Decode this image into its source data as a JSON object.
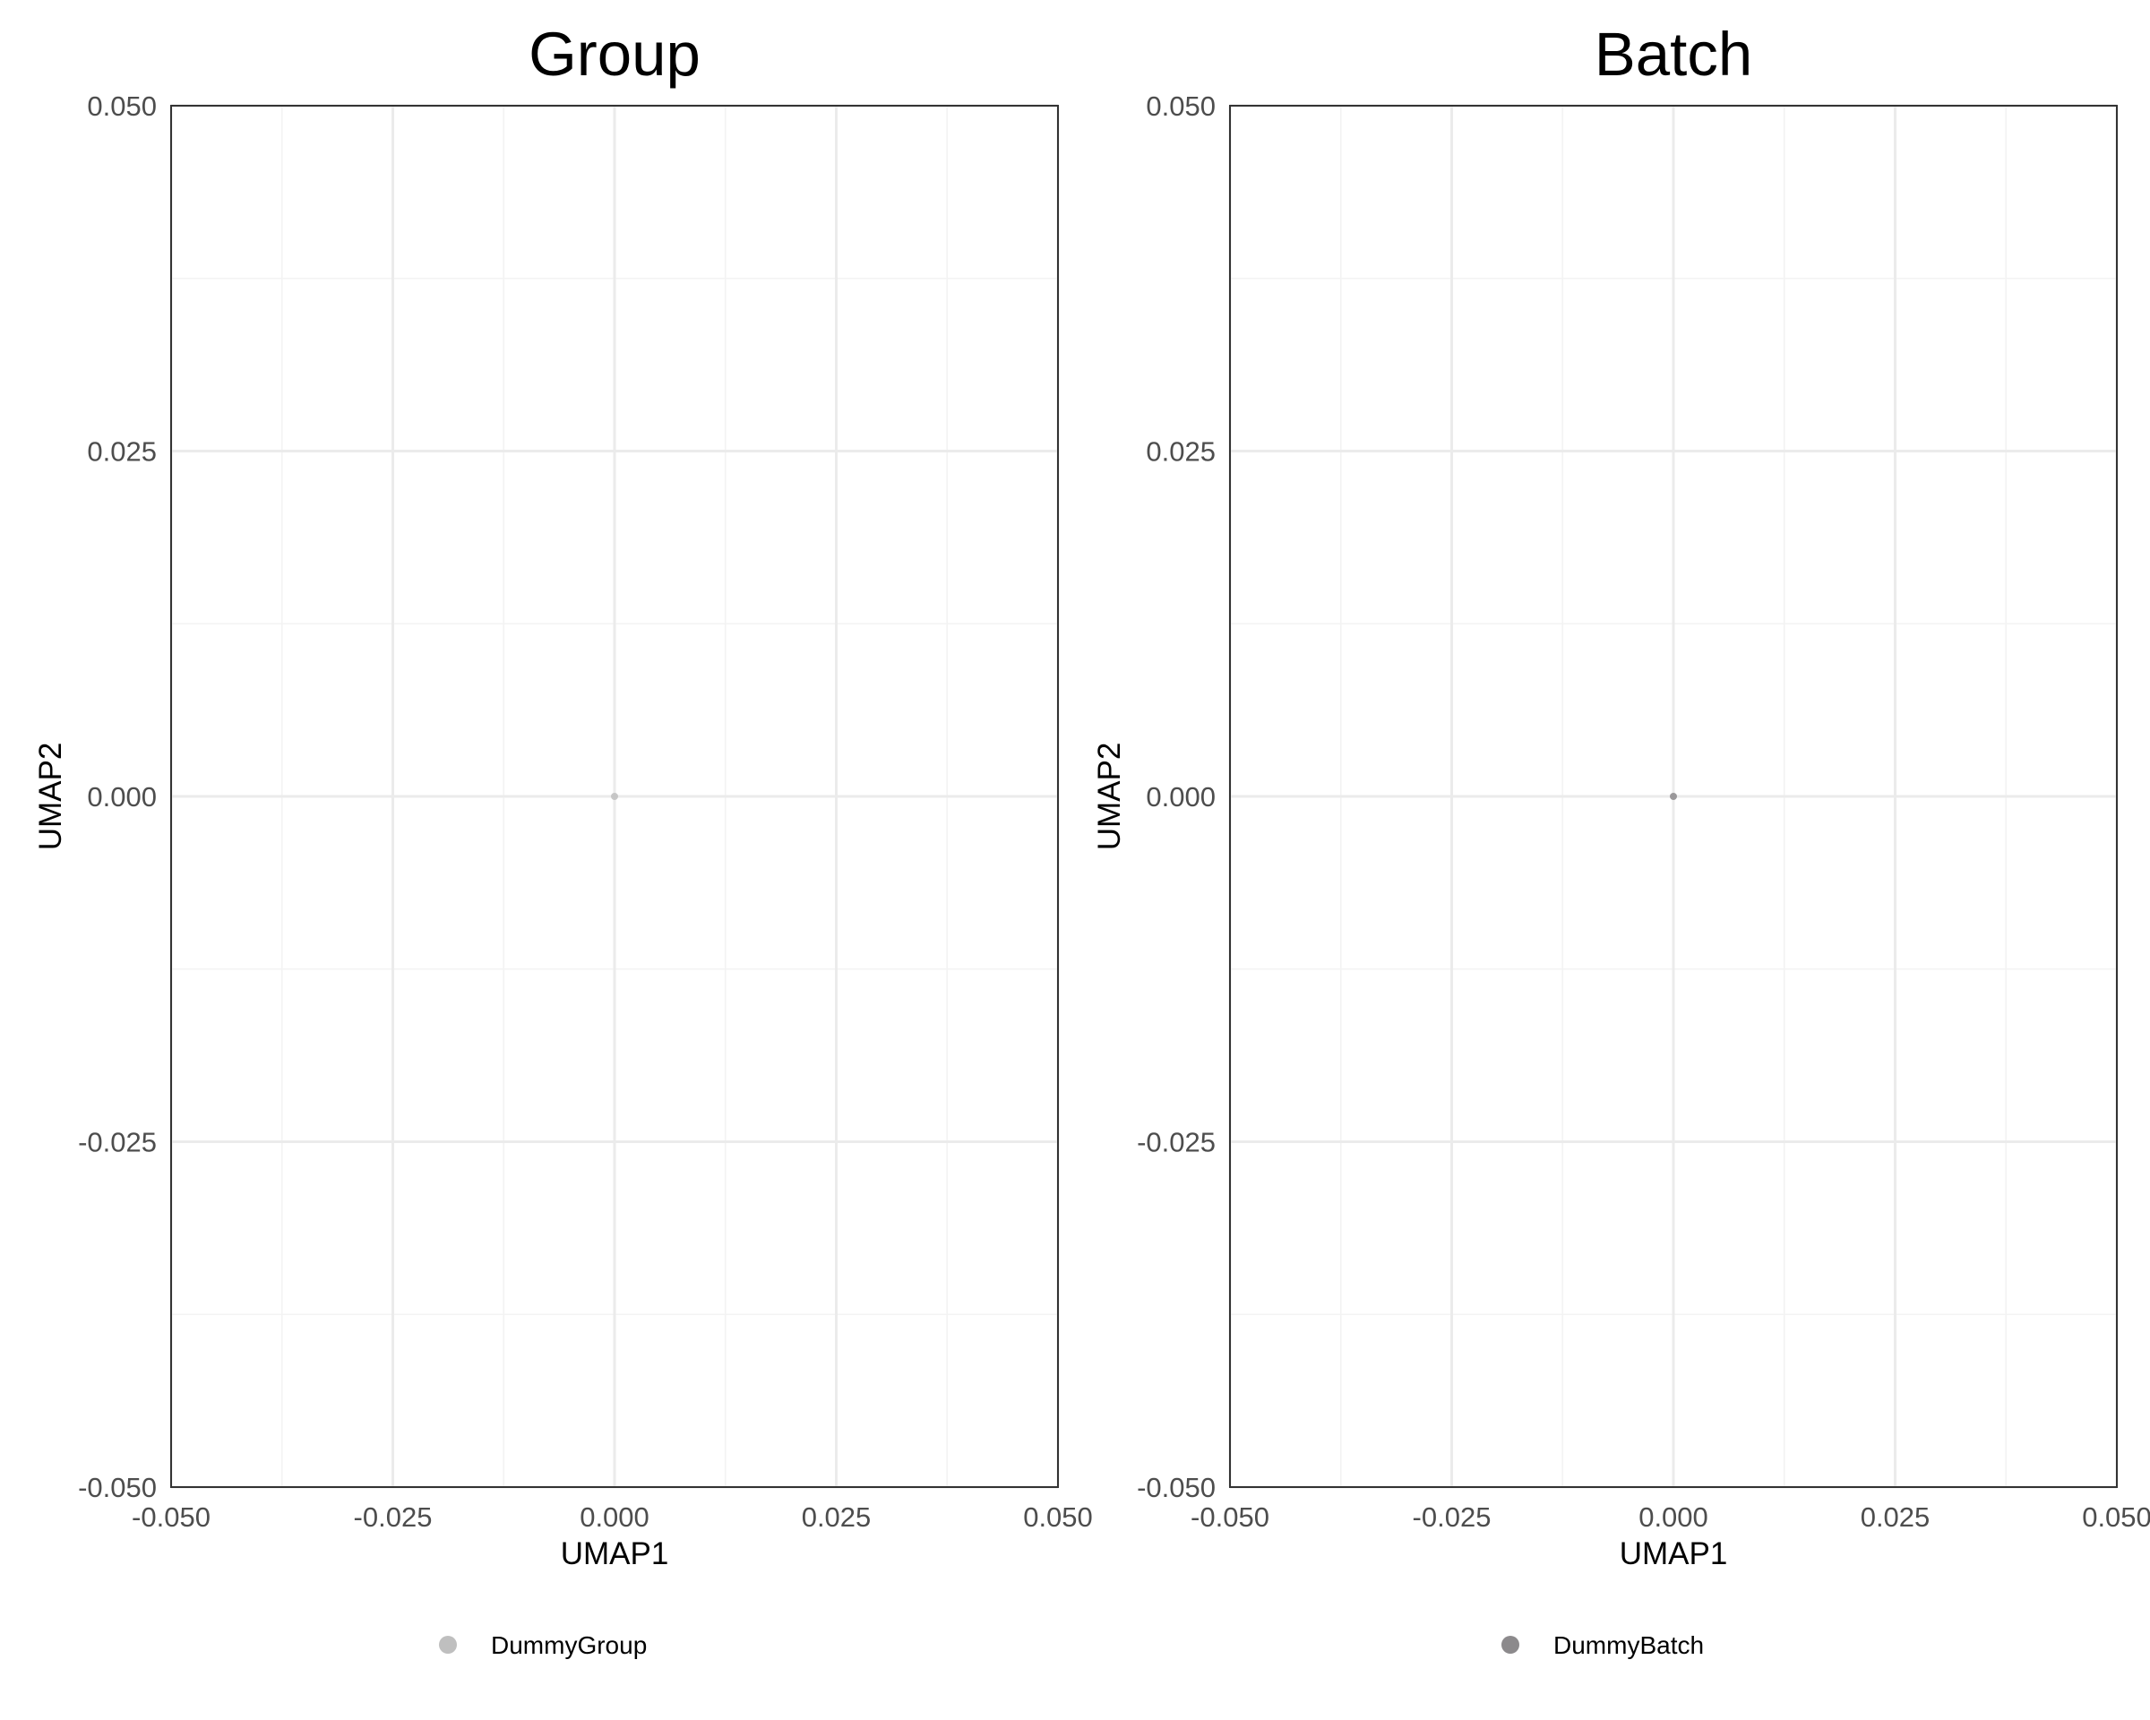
{
  "chart_data": [
    {
      "type": "scatter",
      "title": "Group",
      "xlabel": "UMAP1",
      "ylabel": "UMAP2",
      "xlim": [
        -0.05,
        0.05
      ],
      "ylim": [
        -0.05,
        0.05
      ],
      "x_ticks": [
        "-0.050",
        "-0.025",
        "0.000",
        "0.025",
        "0.050"
      ],
      "y_ticks": [
        "-0.050",
        "-0.025",
        "0.000",
        "0.025",
        "0.050"
      ],
      "grid": true,
      "legend_position": "bottom",
      "series": [
        {
          "name": "DummyGroup",
          "color": "#bfbfbf",
          "points": [
            {
              "x": 0.0,
              "y": 0.0
            }
          ]
        }
      ]
    },
    {
      "type": "scatter",
      "title": "Batch",
      "xlabel": "UMAP1",
      "ylabel": "UMAP2",
      "xlim": [
        -0.05,
        0.05
      ],
      "ylim": [
        -0.05,
        0.05
      ],
      "x_ticks": [
        "-0.050",
        "-0.025",
        "0.000",
        "0.025",
        "0.050"
      ],
      "y_ticks": [
        "-0.050",
        "-0.025",
        "0.000",
        "0.025",
        "0.050"
      ],
      "grid": true,
      "legend_position": "bottom",
      "series": [
        {
          "name": "DummyBatch",
          "color": "#8c8a8c",
          "points": [
            {
              "x": 0.0,
              "y": 0.0
            }
          ]
        }
      ]
    }
  ]
}
